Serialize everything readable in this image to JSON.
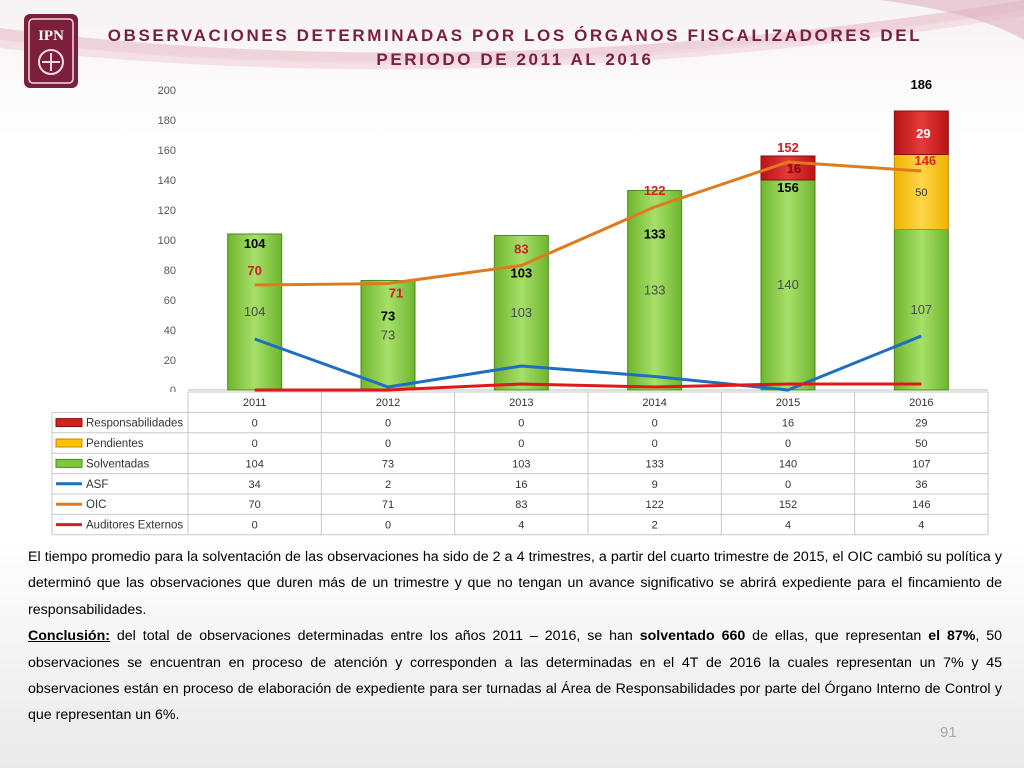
{
  "header": {
    "title_line1": "OBSERVACIONES DETERMINADAS POR LOS ÓRGANOS FISCALIZADORES DEL",
    "title_line2": "PERIODO DE 2011 AL 2016",
    "logo_text": "IPN"
  },
  "chart_data": {
    "type": "bar",
    "stacked": true,
    "categories": [
      "2011",
      "2012",
      "2013",
      "2014",
      "2015",
      "2016"
    ],
    "ylim": [
      0,
      200
    ],
    "yticks": [
      0,
      20,
      40,
      60,
      80,
      100,
      120,
      140,
      160,
      180,
      200
    ],
    "grid": false,
    "legend": "data-table-below",
    "series": [
      {
        "name": "Responsabilidades",
        "kind": "bar",
        "color": "#d42020",
        "values": [
          0,
          0,
          0,
          0,
          16,
          29
        ]
      },
      {
        "name": "Pendientes",
        "kind": "bar",
        "color": "#ffc000",
        "values": [
          0,
          0,
          0,
          0,
          0,
          50
        ]
      },
      {
        "name": "Solventadas",
        "kind": "bar",
        "color": "#7ec83c",
        "values": [
          104,
          73,
          103,
          133,
          140,
          107
        ]
      },
      {
        "name": "ASF",
        "kind": "line",
        "color": "#1f6fbf",
        "values": [
          34,
          2,
          16,
          9,
          0,
          36
        ]
      },
      {
        "name": "OIC",
        "kind": "line",
        "color": "#e07a1f",
        "values": [
          70,
          71,
          83,
          122,
          152,
          146
        ]
      },
      {
        "name": "Auditores Externos",
        "kind": "line",
        "color": "#e01818",
        "values": [
          0,
          0,
          4,
          2,
          4,
          4
        ]
      }
    ],
    "totals": [
      "104",
      "73",
      "103",
      "133",
      "156",
      "186"
    ]
  },
  "body": {
    "paragraph1": "El tiempo promedio para la solventación de las observaciones ha sido de 2 a 4 trimestres, a partir del cuarto trimestre de 2015, el OIC cambió su política y determinó que las observaciones que duren más de un trimestre y que no tengan un avance significativo se abrirá expediente para el fincamiento de responsabilidades.",
    "conclusion_label": "Conclusión:",
    "conclusion_a": " del total de observaciones determinadas entre los años 2011 – 2016, se han ",
    "conclusion_b": "solventado 660",
    "conclusion_c": " de ellas, que representan ",
    "conclusion_d": "el 87%",
    "conclusion_e": ", 50 observaciones se encuentran en proceso de atención y corresponden a las determinadas en el 4T de 2016 la cuales representan un 7% y 45 observaciones están en proceso de elaboración de expediente para ser turnadas al Área de Responsabilidades por parte del Órgano Interno de Control y que representan un 6%."
  },
  "footer": {
    "page_number": "91"
  }
}
